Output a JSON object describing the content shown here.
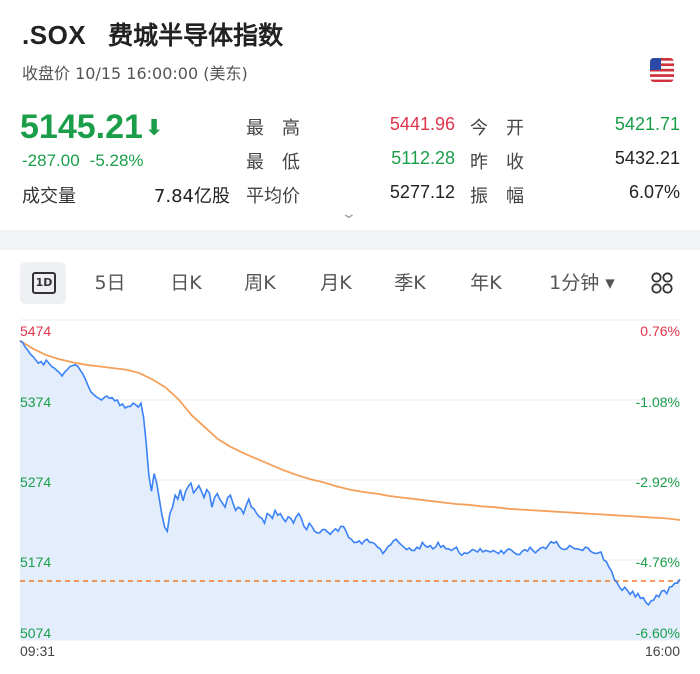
{
  "header": {
    "ticker": ".SOX",
    "name": "费城半导体指数",
    "status": "收盘价 10/15 16:00:00 (美东)",
    "flag_icon": "us-flag-icon"
  },
  "quote": {
    "price": "5145.21",
    "change": "-287.00",
    "change_pct": "-5.28%",
    "volume_label": "成交量",
    "volume_value": "7.84亿股"
  },
  "stats": {
    "high_label": "最　高",
    "high_value": "5441.96",
    "open_label": "今　开",
    "open_value": "5421.71",
    "low_label": "最　低",
    "low_value": "5112.28",
    "prev_close_label": "昨　收",
    "prev_close_value": "5432.21",
    "avg_label": "平均价",
    "avg_value": "5277.12",
    "amplitude_label": "振　幅",
    "amplitude_value": "6.07%"
  },
  "tabs": [
    "5日",
    "日K",
    "周K",
    "月K",
    "季K",
    "年K",
    "1分钟 ▾"
  ],
  "tab_active": "1D",
  "colors": {
    "up": "#e0344b",
    "down": "#1a9e4a",
    "line": "#3b82f6",
    "avg": "#f5a05a"
  },
  "chart_data": {
    "type": "line",
    "x_ticks": [
      "09:31",
      "16:00"
    ],
    "y_left_ticks": [
      "5474",
      "5374",
      "5274",
      "5174",
      "5074"
    ],
    "y_right_ticks": [
      "0.76%",
      "-1.08%",
      "-2.92%",
      "-4.76%",
      "-6.60%"
    ],
    "ylim": [
      5074,
      5474
    ],
    "prev_close": 5432.21,
    "series": [
      {
        "values": [
          5448,
          5446,
          5440,
          5436,
          5431,
          5428,
          5424,
          5420,
          5422,
          5418,
          5424,
          5420,
          5416,
          5414,
          5411,
          5408,
          5404,
          5409,
          5412,
          5416,
          5417,
          5418,
          5416,
          5411,
          5406,
          5399,
          5391,
          5384,
          5381,
          5378,
          5376,
          5374,
          5377,
          5379,
          5376,
          5377,
          5373,
          5374,
          5367,
          5369,
          5364,
          5366,
          5366,
          5370,
          5368,
          5365,
          5370,
          5352,
          5320,
          5280,
          5260,
          5282,
          5270,
          5250,
          5230,
          5215,
          5210,
          5232,
          5240,
          5255,
          5250,
          5262,
          5248,
          5260,
          5266,
          5270,
          5258,
          5262,
          5267,
          5260,
          5252,
          5262,
          5258,
          5240,
          5252,
          5257,
          5250,
          5245,
          5240,
          5252,
          5255,
          5245,
          5236,
          5240,
          5238,
          5232,
          5242,
          5250,
          5240,
          5238,
          5232,
          5228,
          5226,
          5220,
          5232,
          5230,
          5226,
          5236,
          5230,
          5232,
          5226,
          5222,
          5228,
          5226,
          5220,
          5228,
          5232,
          5226,
          5216,
          5212,
          5220,
          5216,
          5210,
          5208,
          5208,
          5212,
          5212,
          5209,
          5206,
          5210,
          5213,
          5210,
          5216,
          5216,
          5210,
          5202,
          5200,
          5196,
          5196,
          5198,
          5194,
          5198,
          5200,
          5196,
          5196,
          5194,
          5190,
          5188,
          5182,
          5186,
          5191,
          5193,
          5198,
          5200,
          5196,
          5193,
          5190,
          5187,
          5189,
          5186,
          5186,
          5190,
          5188,
          5196,
          5192,
          5190,
          5192,
          5188,
          5190,
          5196,
          5190,
          5192,
          5188,
          5188,
          5186,
          5188,
          5190,
          5183,
          5180,
          5183,
          5182,
          5184,
          5187,
          5186,
          5184,
          5188,
          5184,
          5186,
          5185,
          5184,
          5186,
          5184,
          5182,
          5186,
          5182,
          5186,
          5188,
          5186,
          5183,
          5181,
          5181,
          5185,
          5187,
          5185,
          5190,
          5186,
          5183,
          5186,
          5189,
          5190,
          5188,
          5193,
          5197,
          5195,
          5197,
          5191,
          5188,
          5187,
          5188,
          5192,
          5190,
          5188,
          5188,
          5187,
          5186,
          5190,
          5189,
          5185,
          5183,
          5182,
          5183,
          5184,
          5174,
          5172,
          5165,
          5160,
          5150,
          5146,
          5140,
          5136,
          5140,
          5136,
          5131,
          5135,
          5128,
          5132,
          5126,
          5127,
          5121,
          5118,
          5123,
          5124,
          5130,
          5128,
          5135,
          5136,
          5132,
          5140,
          5141,
          5145,
          5145,
          5150
        ]
      },
      {
        "values": [
          5448,
          5438,
          5430,
          5425,
          5421,
          5418,
          5416,
          5414,
          5412,
          5408,
          5400,
          5390,
          5375,
          5355,
          5340,
          5325,
          5315,
          5307,
          5300,
          5293,
          5286,
          5280,
          5275,
          5271,
          5266,
          5262,
          5259,
          5257,
          5254,
          5252,
          5250,
          5248,
          5246,
          5244,
          5243,
          5241,
          5240,
          5238,
          5237,
          5236,
          5235,
          5234,
          5233,
          5232,
          5231,
          5230,
          5229,
          5228,
          5227,
          5226,
          5224
        ]
      }
    ]
  }
}
